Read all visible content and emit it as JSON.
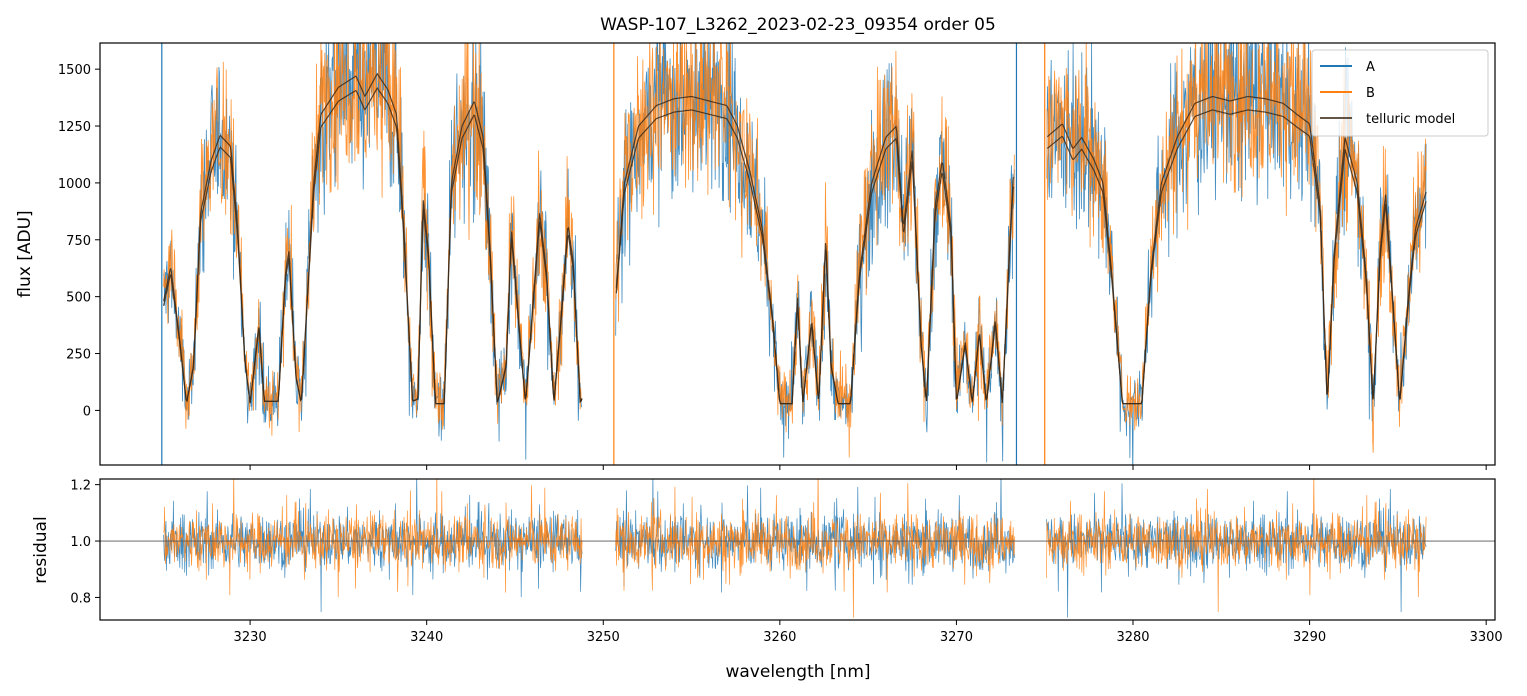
{
  "chart_data": [
    {
      "type": "line",
      "title": "WASP-107_L3262_2023-02-23_09354  order 05",
      "xlabel": "",
      "ylabel": "flux [ADU]",
      "xlim": [
        3221.5,
        3300.5
      ],
      "ylim": [
        -240,
        1615
      ],
      "x_ticks": [
        3230,
        3240,
        3250,
        3260,
        3270,
        3280,
        3290,
        3300
      ],
      "y_ticks": [
        0,
        250,
        500,
        750,
        1000,
        1250,
        1500
      ],
      "y_tick_labels": [
        "0",
        "250",
        "500",
        "750",
        "1000",
        "1250",
        "1500"
      ],
      "x_range_data": [
        3225.1,
        3296.6
      ],
      "segment_breaks": [
        [
          3248.8,
          3250.7
        ],
        [
          3273.3,
          3275.1
        ]
      ],
      "vertical_lines": [
        3225.0,
        3250.6,
        3273.4,
        3275.0
      ],
      "legend_position": "upper right",
      "series": [
        {
          "name": "A",
          "color": "#1f77b4"
        },
        {
          "name": "B",
          "color": "#ff7f0e"
        },
        {
          "name": "telluric model",
          "color": "#3b2a1a"
        }
      ],
      "model_envelope": [
        [
          3225.1,
          480
        ],
        [
          3225.5,
          630
        ],
        [
          3226.0,
          320
        ],
        [
          3226.4,
          30
        ],
        [
          3226.8,
          200
        ],
        [
          3227.2,
          870
        ],
        [
          3227.8,
          1100
        ],
        [
          3228.3,
          1210
        ],
        [
          3228.9,
          1160
        ],
        [
          3229.3,
          800
        ],
        [
          3229.7,
          230
        ],
        [
          3230.0,
          30
        ],
        [
          3230.5,
          380
        ],
        [
          3230.8,
          40
        ],
        [
          3231.6,
          40
        ],
        [
          3232.0,
          600
        ],
        [
          3232.2,
          700
        ],
        [
          3232.6,
          150
        ],
        [
          3232.9,
          30
        ],
        [
          3233.6,
          1000
        ],
        [
          3234.0,
          1300
        ],
        [
          3235.0,
          1420
        ],
        [
          3236.0,
          1470
        ],
        [
          3236.5,
          1380
        ],
        [
          3237.2,
          1480
        ],
        [
          3237.8,
          1410
        ],
        [
          3238.3,
          1300
        ],
        [
          3238.7,
          800
        ],
        [
          3239.2,
          40
        ],
        [
          3239.5,
          50
        ],
        [
          3239.8,
          930
        ],
        [
          3240.1,
          700
        ],
        [
          3240.5,
          30
        ],
        [
          3241.0,
          30
        ],
        [
          3241.4,
          1000
        ],
        [
          3242.0,
          1250
        ],
        [
          3242.7,
          1360
        ],
        [
          3243.2,
          1200
        ],
        [
          3243.6,
          700
        ],
        [
          3244.0,
          30
        ],
        [
          3244.5,
          200
        ],
        [
          3244.8,
          800
        ],
        [
          3245.2,
          400
        ],
        [
          3245.6,
          30
        ],
        [
          3246.0,
          450
        ],
        [
          3246.4,
          870
        ],
        [
          3246.8,
          600
        ],
        [
          3247.2,
          30
        ],
        [
          3247.6,
          400
        ],
        [
          3248.0,
          820
        ],
        [
          3248.3,
          650
        ],
        [
          3248.7,
          30
        ],
        [
          3250.7,
          500
        ],
        [
          3251.2,
          1000
        ],
        [
          3252.0,
          1250
        ],
        [
          3253.0,
          1340
        ],
        [
          3254.0,
          1370
        ],
        [
          3255.0,
          1380
        ],
        [
          3256.0,
          1360
        ],
        [
          3257.0,
          1340
        ],
        [
          3257.6,
          1250
        ],
        [
          3258.3,
          1050
        ],
        [
          3259.0,
          800
        ],
        [
          3259.6,
          400
        ],
        [
          3260.0,
          30
        ],
        [
          3260.7,
          30
        ],
        [
          3261.0,
          500
        ],
        [
          3261.3,
          30
        ],
        [
          3261.8,
          400
        ],
        [
          3262.2,
          30
        ],
        [
          3262.6,
          760
        ],
        [
          3262.9,
          200
        ],
        [
          3263.3,
          30
        ],
        [
          3264.0,
          30
        ],
        [
          3264.5,
          600
        ],
        [
          3265.2,
          1000
        ],
        [
          3266.0,
          1200
        ],
        [
          3266.6,
          1250
        ],
        [
          3267.0,
          800
        ],
        [
          3267.5,
          1150
        ],
        [
          3268.0,
          300
        ],
        [
          3268.3,
          30
        ],
        [
          3268.8,
          900
        ],
        [
          3269.2,
          1100
        ],
        [
          3269.7,
          800
        ],
        [
          3270.0,
          30
        ],
        [
          3270.5,
          300
        ],
        [
          3270.9,
          30
        ],
        [
          3271.3,
          350
        ],
        [
          3271.7,
          30
        ],
        [
          3272.2,
          400
        ],
        [
          3272.6,
          30
        ],
        [
          3273.0,
          700
        ],
        [
          3273.2,
          1020
        ],
        [
          3275.1,
          1200
        ],
        [
          3276.0,
          1260
        ],
        [
          3276.6,
          1150
        ],
        [
          3277.1,
          1200
        ],
        [
          3277.8,
          1100
        ],
        [
          3278.3,
          1000
        ],
        [
          3278.8,
          600
        ],
        [
          3279.4,
          30
        ],
        [
          3280.5,
          30
        ],
        [
          3281.0,
          600
        ],
        [
          3281.6,
          1000
        ],
        [
          3282.5,
          1200
        ],
        [
          3283.5,
          1350
        ],
        [
          3284.5,
          1380
        ],
        [
          3285.5,
          1360
        ],
        [
          3286.5,
          1380
        ],
        [
          3287.5,
          1370
        ],
        [
          3288.5,
          1350
        ],
        [
          3289.3,
          1300
        ],
        [
          3290.0,
          1260
        ],
        [
          3290.6,
          900
        ],
        [
          3291.0,
          30
        ],
        [
          3291.4,
          700
        ],
        [
          3292.0,
          1200
        ],
        [
          3292.7,
          1000
        ],
        [
          3293.2,
          600
        ],
        [
          3293.6,
          30
        ],
        [
          3294.0,
          700
        ],
        [
          3294.3,
          950
        ],
        [
          3294.7,
          500
        ],
        [
          3295.1,
          30
        ],
        [
          3295.6,
          500
        ],
        [
          3296.0,
          800
        ],
        [
          3296.6,
          960
        ]
      ]
    },
    {
      "type": "line",
      "title": "",
      "xlabel": "wavelength [nm]",
      "ylabel": "residual",
      "xlim": [
        3221.5,
        3300.5
      ],
      "ylim": [
        0.72,
        1.22
      ],
      "x_ticks": [
        3230,
        3240,
        3250,
        3260,
        3270,
        3280,
        3290,
        3300
      ],
      "x_tick_labels": [
        "3230",
        "3240",
        "3250",
        "3260",
        "3270",
        "3280",
        "3290",
        "3300"
      ],
      "y_ticks": [
        0.8,
        1.0,
        1.2
      ],
      "y_tick_labels": [
        "0.8",
        "1.0",
        "1.2"
      ],
      "reference_line": 1.0,
      "residual_center": 1.0,
      "residual_spread": 0.09,
      "segments": [
        [
          3225.1,
          3248.8
        ],
        [
          3250.7,
          3273.3
        ],
        [
          3275.1,
          3296.6
        ]
      ],
      "series": [
        {
          "name": "A",
          "color": "#1f77b4"
        },
        {
          "name": "B",
          "color": "#ff7f0e"
        }
      ]
    }
  ]
}
